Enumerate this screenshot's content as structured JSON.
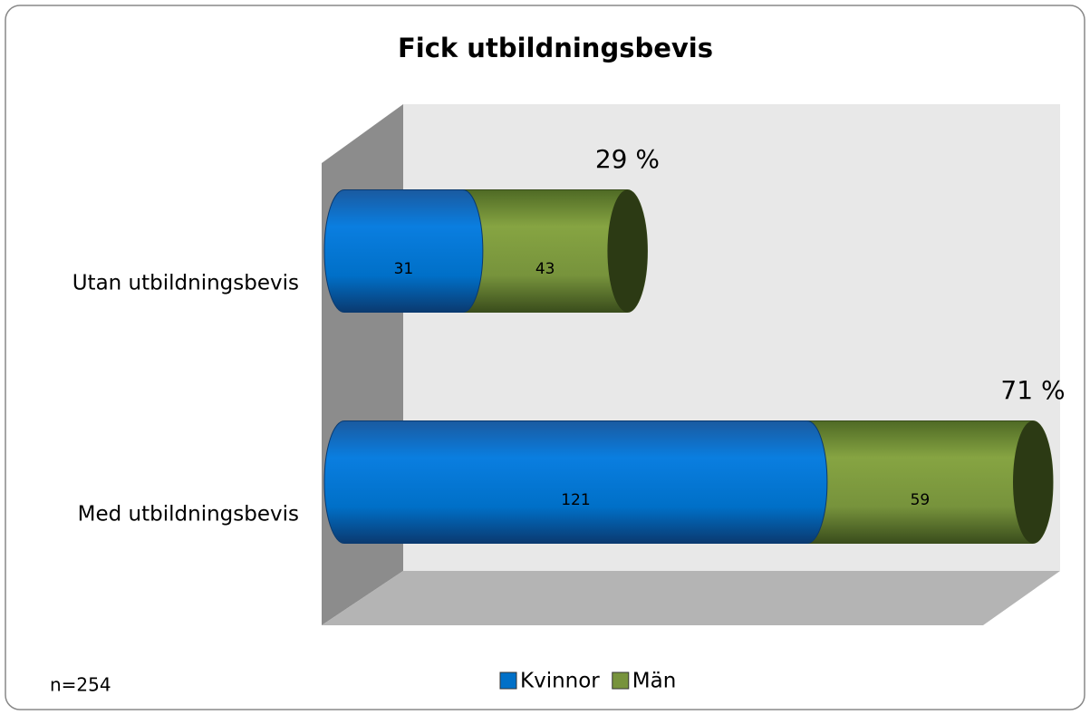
{
  "chart_data": {
    "type": "bar",
    "orientation": "horizontal",
    "stacked": true,
    "title": "Fick utbildningsbevis",
    "categories": [
      "Utan utbildningsbevis",
      "Med utbildningsbevis"
    ],
    "series": [
      {
        "name": "Kvinnor",
        "color": "#0070c8",
        "values": [
          31,
          121
        ]
      },
      {
        "name": "Män",
        "color": "#77933c",
        "values": [
          43,
          59
        ]
      }
    ],
    "annotations": [
      "29 %",
      "71 %"
    ],
    "note": "n=254",
    "legend": "bottom"
  }
}
